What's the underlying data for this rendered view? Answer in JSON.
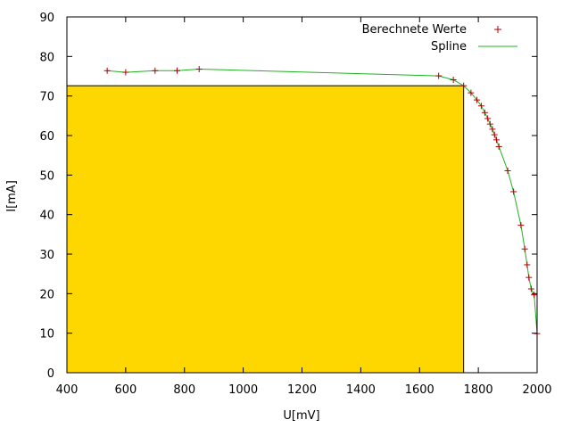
{
  "chart_data": {
    "type": "scatter",
    "title": "",
    "xlabel": "U[mV]",
    "ylabel": "I[mA]",
    "xlim": [
      400,
      2000
    ],
    "ylim": [
      0,
      90
    ],
    "xticks": [
      400,
      600,
      800,
      1000,
      1200,
      1400,
      1600,
      1800,
      2000
    ],
    "yticks": [
      0,
      10,
      20,
      30,
      40,
      50,
      60,
      70,
      80,
      90
    ],
    "grid": false,
    "legend_position": "top-right",
    "colors": {
      "points": "#B00000",
      "spline": "#22B022",
      "rectangle": "#FFD700"
    },
    "series": [
      {
        "name": "Berechnete Werte",
        "style": "points",
        "x": [
          537,
          600,
          700,
          775,
          850,
          1665,
          1715,
          1750,
          1775,
          1795,
          1810,
          1822,
          1832,
          1840,
          1848,
          1855,
          1862,
          1870,
          1900,
          1920,
          1945,
          1958,
          1966,
          1972,
          1980,
          1990,
          2000
        ],
        "y": [
          76.4,
          76.0,
          76.4,
          76.4,
          76.8,
          75.1,
          74.1,
          72.6,
          70.8,
          69.0,
          67.5,
          65.8,
          64.3,
          62.9,
          61.6,
          60.2,
          58.9,
          57.2,
          51.1,
          45.8,
          37.3,
          31.3,
          27.3,
          24.1,
          21.2,
          19.7,
          9.9
        ]
      },
      {
        "name": "Spline",
        "style": "line",
        "x": [
          537,
          600,
          700,
          775,
          850,
          1665,
          1715,
          1750,
          1775,
          1795,
          1810,
          1822,
          1832,
          1840,
          1848,
          1855,
          1862,
          1870,
          1900,
          1920,
          1945,
          1958,
          1966,
          1972,
          1980,
          1990,
          2000
        ],
        "y": [
          76.4,
          76.0,
          76.4,
          76.4,
          76.8,
          75.1,
          74.1,
          72.6,
          70.8,
          69.0,
          67.5,
          65.8,
          64.3,
          62.9,
          61.6,
          60.2,
          58.9,
          57.2,
          51.1,
          45.8,
          37.3,
          31.3,
          27.3,
          24.1,
          21.2,
          19.7,
          9.9
        ]
      }
    ],
    "rectangle": {
      "x0": 400,
      "x1": 1750,
      "y0": 0,
      "y1": 72.6
    }
  }
}
